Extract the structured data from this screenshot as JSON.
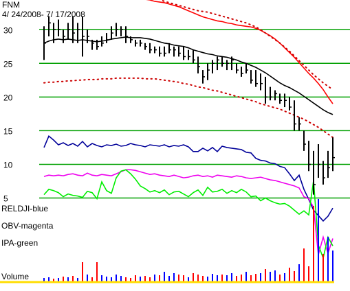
{
  "chart_data": [
    {
      "type": "ohlc",
      "title": "FNM",
      "subtitle": "4/ 24/2008- 7/ 17/2008",
      "ylim": [
        -8.8,
        34.4
      ],
      "yticks": [
        30,
        25,
        20,
        15,
        10,
        5
      ],
      "grid": true,
      "grid_color": "#00a000",
      "bar_color": "#000000",
      "high": [
        30.5,
        32,
        31,
        31.5,
        30,
        31,
        32,
        31,
        32,
        30,
        28.5,
        28.5,
        29,
        29.5,
        30.5,
        31,
        30.5,
        30.5,
        29,
        28.5,
        28.5,
        28,
        28,
        27.5,
        27.5,
        27.5,
        28,
        27.5,
        27.5,
        27.5,
        27,
        27,
        26,
        24,
        25,
        25.5,
        26,
        26,
        25.5,
        26,
        25,
        24.5,
        25,
        24,
        24,
        23.5,
        23,
        21.5,
        21,
        20.5,
        20.5,
        20,
        19.5,
        17,
        15,
        13.5,
        12,
        13,
        10.5,
        12,
        14
      ],
      "low": [
        25.5,
        29,
        28,
        29,
        28,
        28.5,
        28,
        28,
        26,
        28,
        27,
        27,
        27.5,
        28,
        28.5,
        29,
        29,
        28,
        28,
        27.5,
        27.5,
        27,
        26.5,
        26.5,
        26,
        26,
        26.5,
        26,
        26,
        25.5,
        25.5,
        25,
        23.5,
        22,
        22.5,
        23.5,
        24,
        24.5,
        24,
        24,
        23.5,
        23,
        23.5,
        22,
        21.5,
        21,
        19,
        19.5,
        19.5,
        19,
        18.5,
        18,
        15,
        15,
        12,
        9,
        5.5,
        8,
        7,
        8,
        9
      ],
      "close": [
        28,
        31,
        30,
        30,
        29,
        30,
        29.5,
        30,
        29,
        29,
        28,
        27.5,
        28,
        28.5,
        29.5,
        30,
        30,
        29,
        28.5,
        28,
        28,
        27.5,
        27,
        27,
        26.5,
        26.5,
        27,
        27,
        26.5,
        26,
        26,
        25.5,
        24.5,
        23,
        24,
        25,
        25.5,
        25,
        25,
        25.5,
        24,
        23.5,
        24,
        22.5,
        22,
        22,
        20,
        20,
        20.5,
        19.5,
        19.5,
        18.5,
        16,
        16,
        13,
        10,
        7,
        10,
        8,
        9.5,
        11
      ],
      "overlays": [
        {
          "color": "#000000",
          "style": "solid",
          "values": [
            28.0,
            28.3,
            28.5,
            28.6,
            28.5,
            28.6,
            28.5,
            28.4,
            28.5,
            28.4,
            28.3,
            28.2,
            28.3,
            28.4,
            28.6,
            28.7,
            28.8,
            28.9,
            28.8,
            28.8,
            28.8,
            28.7,
            28.6,
            28.4,
            28.2,
            28.0,
            27.9,
            27.7,
            27.6,
            27.5,
            27.3,
            27.0,
            26.8,
            26.6,
            26.4,
            26.3,
            26.1,
            26.0,
            25.9,
            25.7,
            25.5,
            25.2,
            25.0,
            24.7,
            24.4,
            24.0,
            23.6,
            23.1,
            22.6,
            22.1,
            21.7,
            21.4,
            21.0,
            20.6,
            20.1,
            19.6,
            19.1,
            18.6,
            18.1,
            17.7,
            17.4
          ]
        },
        {
          "color": "#ff0000",
          "style": "solid",
          "values": [
            38.5,
            38.3,
            38.1,
            37.9,
            37.7,
            37.5,
            37.3,
            37.1,
            36.9,
            36.7,
            36.5,
            36.3,
            36.1,
            35.9,
            35.7,
            35.5,
            35.3,
            35.1,
            34.9,
            34.8,
            34.6,
            34.5,
            34.4,
            34.2,
            34.1,
            34.0,
            33.8,
            33.6,
            33.4,
            33.1,
            32.8,
            32.5,
            32.2,
            31.9,
            31.7,
            31.5,
            31.3,
            31.2,
            31.0,
            30.9,
            30.7,
            30.6,
            30.5,
            30.4,
            30.2,
            29.9,
            29.5,
            29.1,
            28.6,
            28.0,
            27.3,
            26.6,
            25.9,
            25.1,
            24.3,
            23.5,
            22.8,
            22.0,
            21.1,
            20.0,
            19.0
          ]
        },
        {
          "color": "#cc0000",
          "style": "dotted",
          "values": [
            39.5,
            39.4,
            39.3,
            39.2,
            39.1,
            39.0,
            38.9,
            38.8,
            38.7,
            38.6,
            38.5,
            38.3,
            38.1,
            37.9,
            37.7,
            37.5,
            37.2,
            36.9,
            36.6,
            36.3,
            36.0,
            35.6,
            35.2,
            34.8,
            34.5,
            34.2,
            34.0,
            33.8,
            33.6,
            33.4,
            33.2,
            33.0,
            32.8,
            32.7,
            32.6,
            32.4,
            32.2,
            32.0,
            31.8,
            31.6,
            31.4,
            31.2,
            31.0,
            30.7,
            30.4,
            30.0,
            29.5,
            29.0,
            28.5,
            28.0,
            27.4,
            26.8,
            26.1,
            25.4,
            24.7,
            24.0,
            23.3,
            22.7,
            22.1,
            21.6,
            21.1
          ]
        },
        {
          "color": "#cc0000",
          "style": "dotted",
          "values": [
            22.1,
            22.2,
            22.2,
            22.3,
            22.3,
            22.4,
            22.4,
            22.5,
            22.5,
            22.6,
            22.6,
            22.6,
            22.7,
            22.7,
            22.7,
            22.8,
            22.8,
            22.8,
            22.8,
            22.8,
            22.8,
            22.7,
            22.7,
            22.7,
            22.6,
            22.5,
            22.4,
            22.3,
            22.2,
            22.0,
            21.9,
            21.7,
            21.5,
            21.4,
            21.2,
            21.0,
            20.9,
            20.7,
            20.5,
            20.3,
            20.1,
            19.9,
            19.7,
            19.5,
            19.3,
            19.0,
            18.8,
            18.6,
            18.4,
            18.2,
            17.9,
            17.6,
            17.3,
            17.0,
            16.7,
            16.3,
            15.9,
            15.5,
            15.0,
            14.5,
            14.0
          ]
        }
      ],
      "series": [
        {
          "name": "RELDJI-blue",
          "color": "#000099",
          "values": [
            12.5,
            14.2,
            13.6,
            12.9,
            13.2,
            12.8,
            13.1,
            12.7,
            13.4,
            12.6,
            13.1,
            12.8,
            12.6,
            12.9,
            12.8,
            13.0,
            12.7,
            12.8,
            13.1,
            12.9,
            12.8,
            12.6,
            12.9,
            12.8,
            12.7,
            12.9,
            12.6,
            12.8,
            12.7,
            12.9,
            12.6,
            11.9,
            11.9,
            12.4,
            12.0,
            12.5,
            11.9,
            12.7,
            12.5,
            12.4,
            12.3,
            12.2,
            11.8,
            11.7,
            10.9,
            10.6,
            10.5,
            10.2,
            10.1,
            9.7,
            9.5,
            8.6,
            7.6,
            8.4,
            6.3,
            4.8,
            3.2,
            2.4,
            1.6,
            2.3,
            3.5
          ]
        },
        {
          "name": "OBV-magenta",
          "color": "#ee00ee",
          "values": [
            8.2,
            8.4,
            8.3,
            8.4,
            8.3,
            8.5,
            8.6,
            8.4,
            8.3,
            8.7,
            8.4,
            8.3,
            8.5,
            8.4,
            8.3,
            8.6,
            8.9,
            9.2,
            9.2,
            9.1,
            8.9,
            8.7,
            8.5,
            8.6,
            8.4,
            8.3,
            8.2,
            8.4,
            8.2,
            8.0,
            8.1,
            8.3,
            8.4,
            8.2,
            8.3,
            8.1,
            8.4,
            8.3,
            8.2,
            8.1,
            8.3,
            8.2,
            8.0,
            7.9,
            8.0,
            8.1,
            7.9,
            7.7,
            7.6,
            7.4,
            7.2,
            7.0,
            6.8,
            6.5,
            5.2,
            4.9,
            3.6,
            -3.4,
            -0.8,
            -3.2,
            -1.0
          ]
        },
        {
          "name": "IPA-green",
          "color": "#00ee00",
          "values": [
            5.5,
            6.3,
            6.1,
            5.8,
            5.2,
            5.6,
            5.4,
            5.3,
            5.1,
            6.0,
            5.8,
            4.9,
            7.4,
            6.1,
            5.7,
            8.0,
            9.0,
            9.2,
            8.6,
            7.8,
            6.8,
            6.4,
            5.9,
            6.1,
            5.8,
            6.2,
            5.5,
            5.9,
            6.0,
            5.6,
            5.2,
            5.8,
            6.2,
            5.4,
            6.6,
            5.9,
            6.0,
            6.3,
            5.7,
            6.1,
            5.8,
            6.3,
            5.9,
            5.2,
            5.3,
            4.6,
            5.0,
            4.6,
            4.3,
            4.1,
            4.2,
            3.8,
            3.2,
            2.6,
            3.1,
            2.5,
            7.6,
            -2.0,
            -3.9,
            -0.8,
            -2.1
          ]
        }
      ]
    },
    {
      "type": "volume",
      "label": "Volume",
      "ylim": [
        0,
        120
      ],
      "up_color": "#0000ff",
      "down_color": "#ff0000",
      "base_color": "#ffdd00",
      "values": [
        5,
        6,
        4,
        5,
        7,
        6,
        8,
        5,
        28,
        10,
        6,
        28,
        9,
        7,
        6,
        10,
        8,
        6,
        5,
        9,
        7,
        8,
        6,
        10,
        9,
        14,
        8,
        12,
        10,
        9,
        6,
        12,
        10,
        8,
        7,
        11,
        9,
        10,
        9,
        12,
        8,
        10,
        14,
        9,
        11,
        12,
        18,
        14,
        16,
        10,
        12,
        20,
        15,
        25,
        48,
        22,
        110,
        120,
        40,
        65,
        45
      ]
    }
  ]
}
